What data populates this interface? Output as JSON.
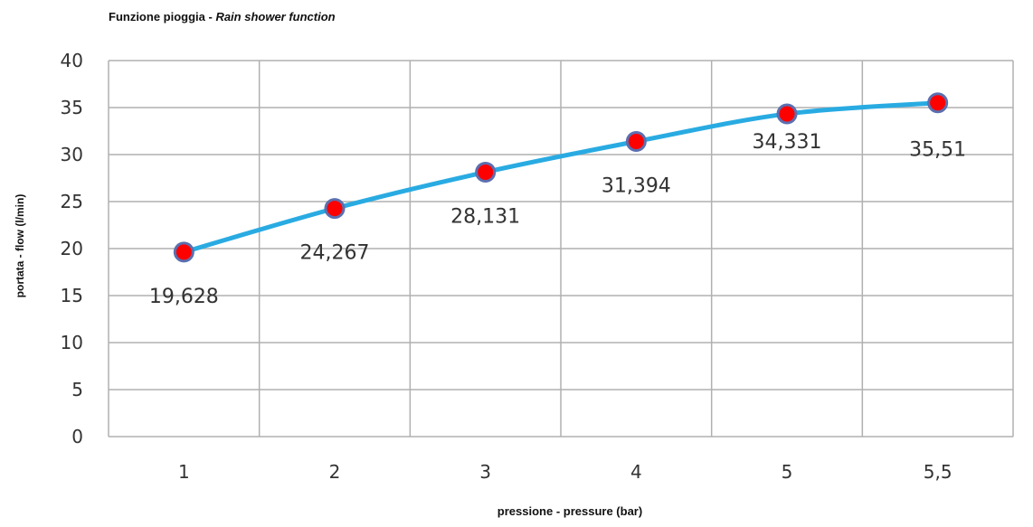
{
  "title": {
    "it": "Funzione pioggia - ",
    "en": "Rain shower function"
  },
  "chart_data": {
    "type": "line",
    "title": "Funzione pioggia - Rain shower function",
    "xlabel": "pressione - pressure  (bar)",
    "ylabel": "portata - flow (l/min)",
    "categories": [
      "1",
      "2",
      "3",
      "4",
      "5",
      "5,5"
    ],
    "series": [
      {
        "values": [
          19.628,
          24.267,
          28.131,
          31.394,
          34.331,
          35.51
        ],
        "data_labels": [
          "19,628",
          "24,267",
          "28,131",
          "31,394",
          "34,331",
          "35,51"
        ]
      }
    ],
    "ylim": [
      0,
      40
    ],
    "yticks": [
      0,
      5,
      10,
      15,
      20,
      25,
      30,
      35,
      40
    ],
    "grid": true,
    "legend": "none"
  },
  "colors": {
    "line": "#29abe2",
    "marker_fill": "#ff0000",
    "marker_stroke": "#5b6fb0",
    "grid": "#b0b0b0"
  }
}
